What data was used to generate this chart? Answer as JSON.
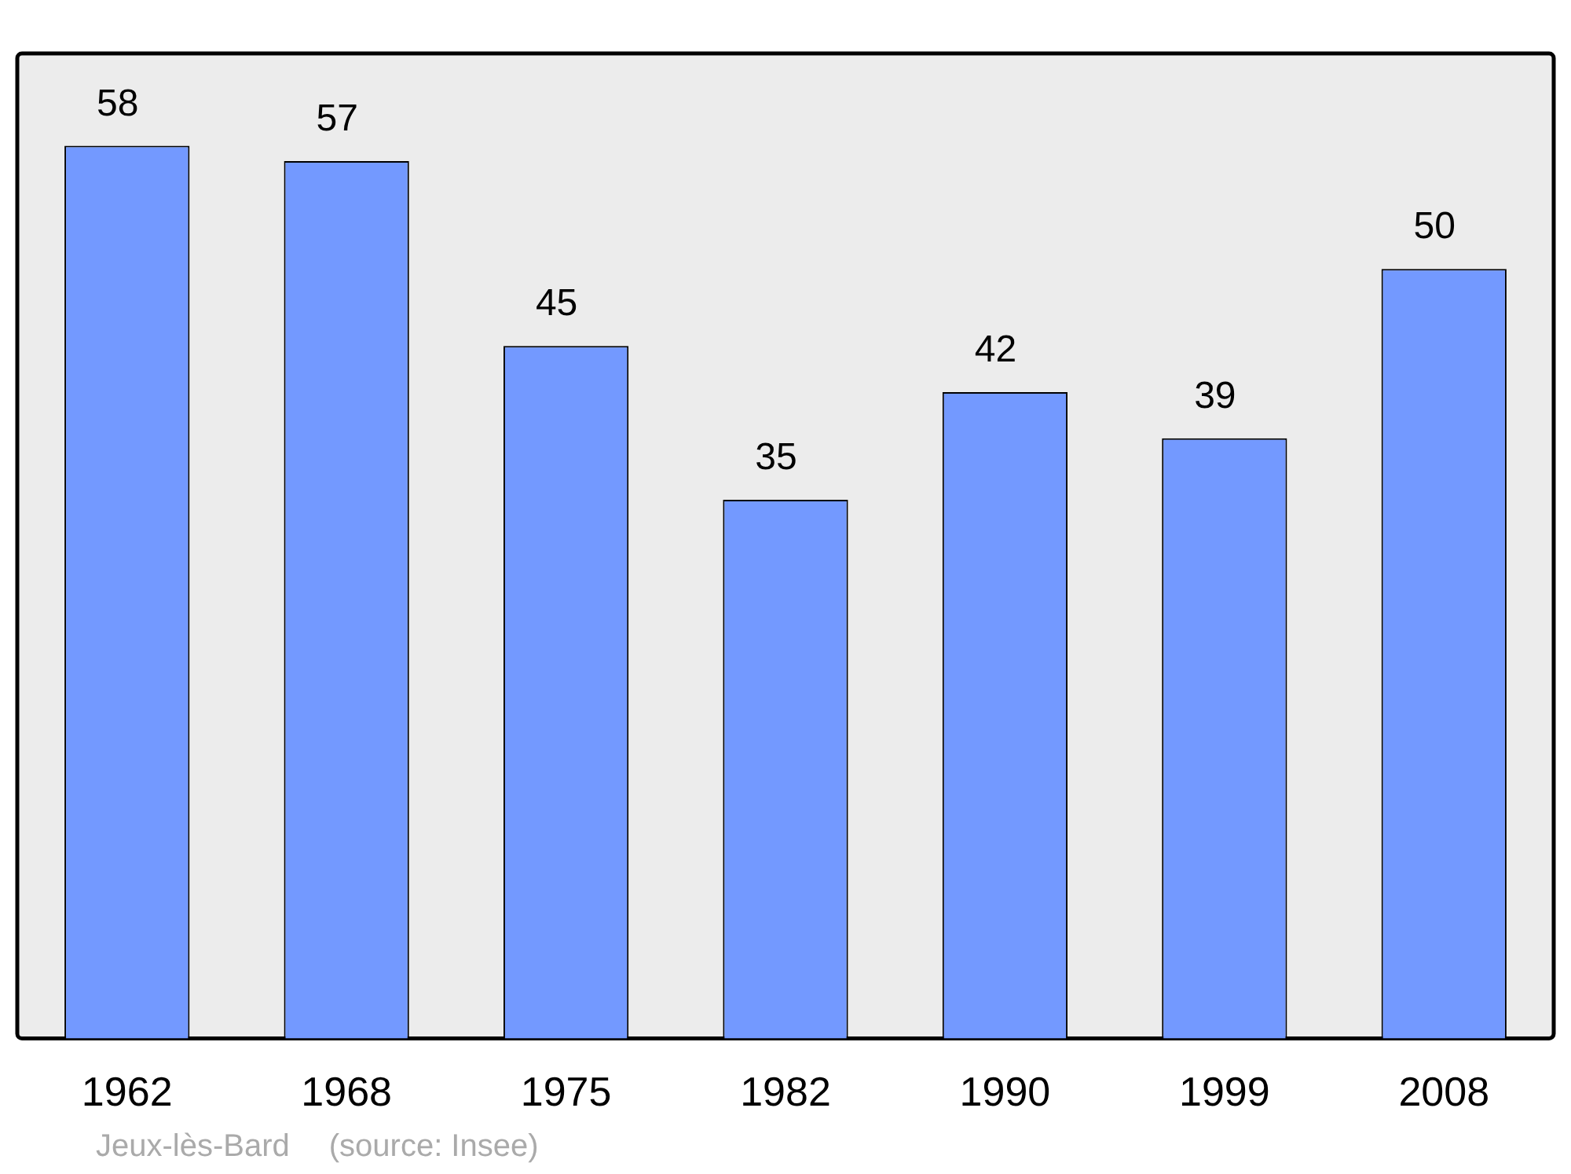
{
  "chart_data": {
    "type": "bar",
    "categories": [
      "1962",
      "1968",
      "1975",
      "1982",
      "1990",
      "1999",
      "2008"
    ],
    "values": [
      58,
      57,
      45,
      35,
      42,
      39,
      50
    ],
    "color": "#7399ff",
    "ylim": [
      0,
      64
    ],
    "tick_labels": "x",
    "grid": false,
    "legend": false,
    "data_labels": true,
    "annotations": [
      "Jeux-lès-Bard",
      "(source: Insee)"
    ]
  }
}
